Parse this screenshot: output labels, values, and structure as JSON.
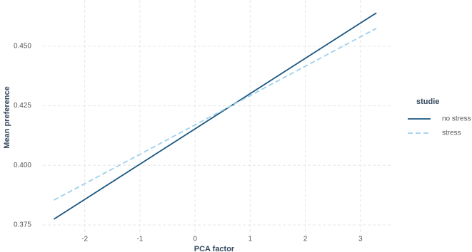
{
  "chart_data": {
    "type": "line",
    "xlabel": "PCA factor",
    "ylabel": "Mean preference",
    "x": [
      -2.56,
      3.29
    ],
    "series": [
      {
        "name": "no stress",
        "color": "#1a5680",
        "dash": false,
        "values": [
          0.3774,
          0.464
        ]
      },
      {
        "name": "stress",
        "color": "#9fd0ec",
        "dash": true,
        "values": [
          0.3854,
          0.4575
        ]
      }
    ],
    "xlim": [
      -2.76,
      3.56
    ],
    "xticks": [
      -2,
      -1,
      0,
      1,
      2,
      3
    ],
    "ylim": [
      0.3708,
      0.4694
    ],
    "yticks": [
      {
        "value": 0.375,
        "label": "0.375"
      },
      {
        "value": 0.4,
        "label": "0.400"
      },
      {
        "value": 0.425,
        "label": "0.425"
      },
      {
        "value": 0.45,
        "label": "0.450"
      }
    ],
    "grid": true,
    "legend_title": "studie",
    "legend": "right"
  }
}
